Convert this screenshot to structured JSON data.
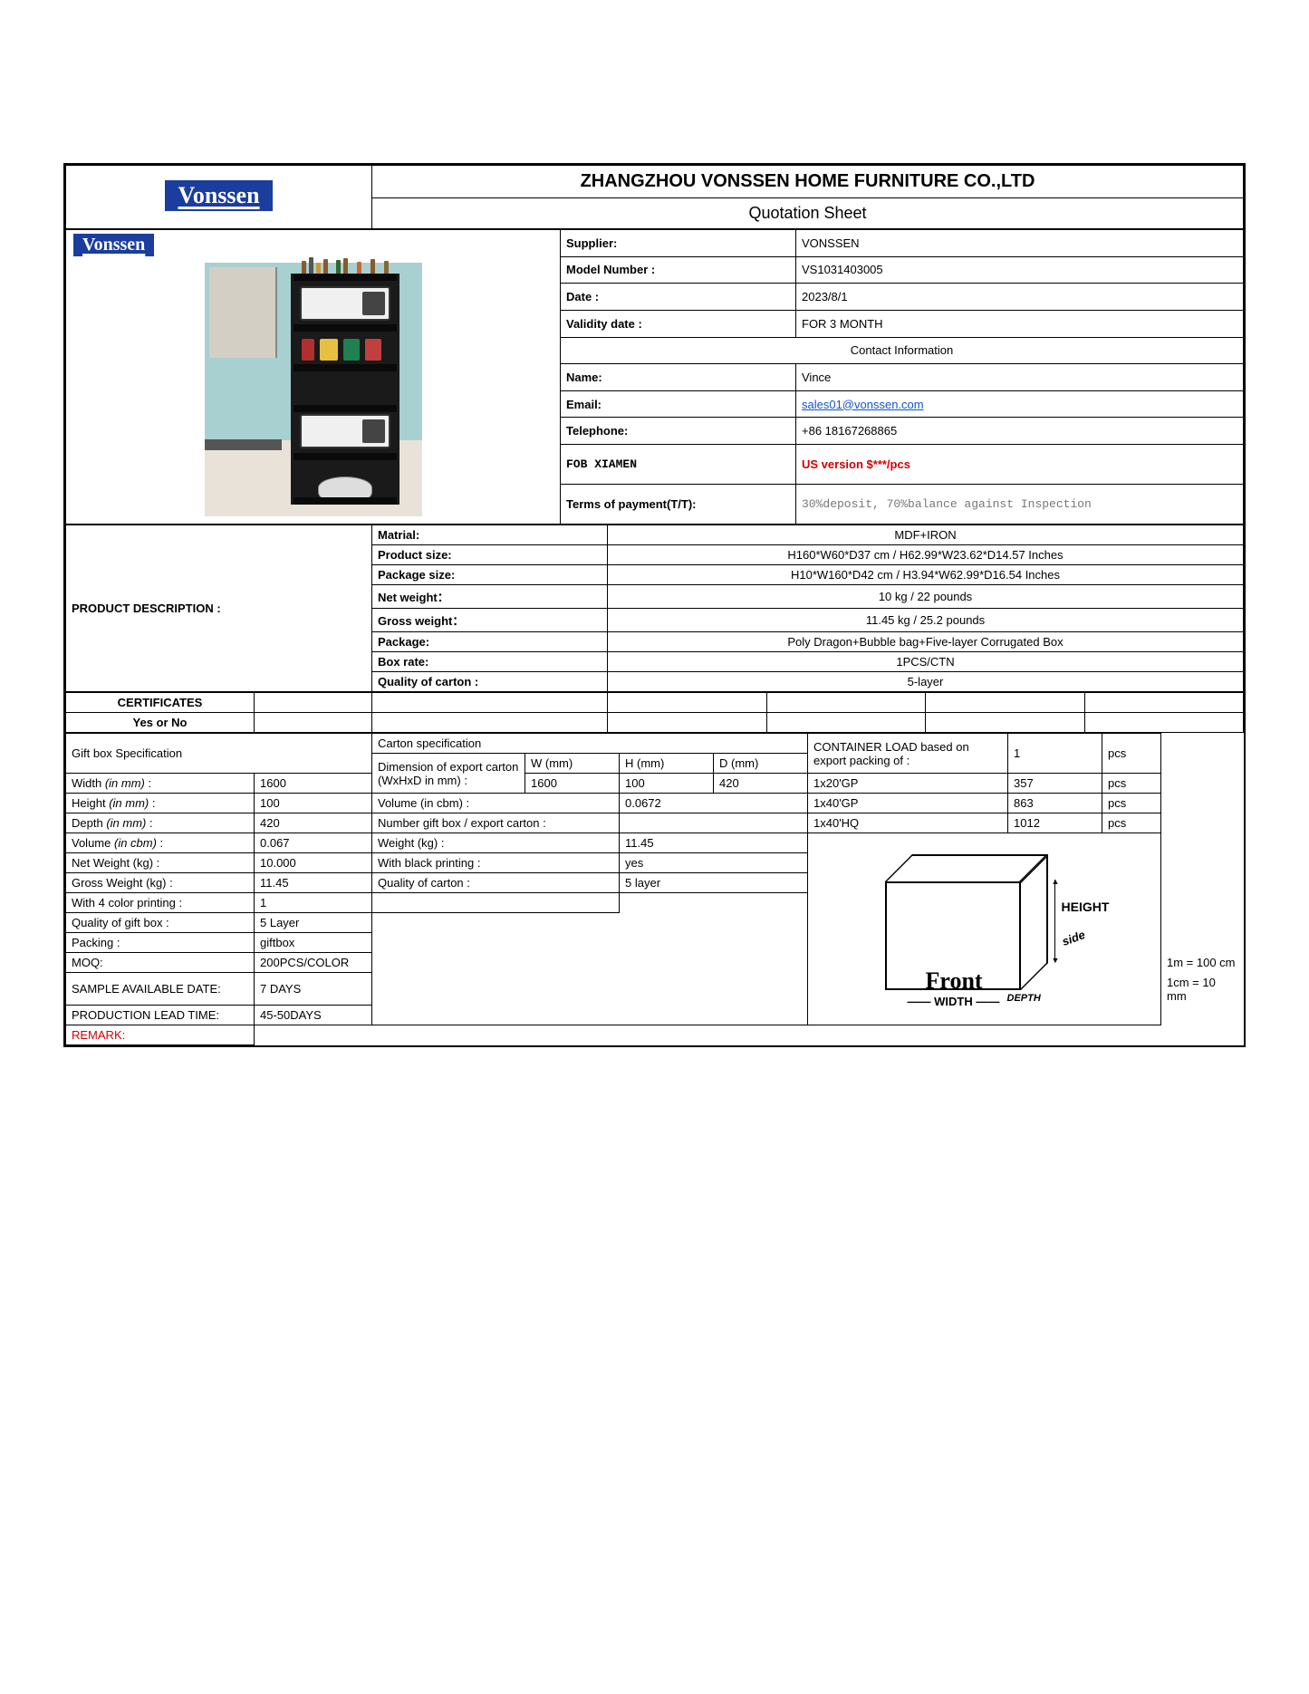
{
  "logo": "Vonssen",
  "company_title": "ZHANGZHOU VONSSEN HOME FURNITURE CO.,LTD",
  "subtitle": "Quotation Sheet",
  "info": {
    "supplier_label": "Supplier:",
    "supplier": "VONSSEN",
    "model_label": "Model Number :",
    "model": "VS1031403005",
    "date_label": "Date :",
    "date": "2023/8/1",
    "validity_label": "Validity date :",
    "validity": "FOR 3 MONTH",
    "contact_header": "Contact Information",
    "name_label": "Name:",
    "name": "Vince",
    "email_label": "Email:",
    "email": "sales01@vonssen.com",
    "tel_label": "Telephone:",
    "tel": "+86 18167268865",
    "fob_label": "FOB XIAMEN",
    "fob_value": "US version  $***/pcs",
    "terms_label": "Terms of payment(T/T):",
    "terms_value": "30%deposit, 70%balance against Inspection"
  },
  "product_desc_label": "PRODUCT DESCRIPTION :",
  "specs": {
    "material_label": "Matrial:",
    "material": "MDF+IRON",
    "psize_label": "Product size:",
    "psize": "H160*W60*D37 cm  /  H62.99*W23.62*D14.57 Inches",
    "pkgsize_label": "Package size:",
    "pkgsize": "H10*W160*D42 cm  /  H3.94*W62.99*D16.54 Inches",
    "netw_label": "Net weight：",
    "netw": "10 kg  / 22 pounds",
    "grossw_label": "Gross weight：",
    "grossw": "11.45 kg  / 25.2 pounds",
    "pkg_label": "Package:",
    "pkg": "Poly Dragon+Bubble bag+Five-layer Corrugated Box",
    "boxrate_label": "Box rate:",
    "boxrate": "1PCS/CTN",
    "qcarton_label": "Quality of carton :",
    "qcarton": "5-layer"
  },
  "certificates_label": "CERTIFICATES",
  "yesno_label": "Yes or No",
  "giftbox_label": "Gift box Specification",
  "carton_spec_label": "Carton specification",
  "container_label": "CONTAINER LOAD based on export packing of :",
  "container_qty": "1",
  "container_unit": "pcs",
  "dim_export_label": "Dimension of export carton\n(WxHxD in mm) :",
  "w_label": "W (mm)",
  "h_label": "H (mm)",
  "d_label": "D (mm)",
  "rows": {
    "width": {
      "label": "Width (in mm) :",
      "val": "1600",
      "w": "1600",
      "h": "100",
      "d": "420",
      "cnt": "1x20'GP",
      "qty": "357",
      "unit": "pcs"
    },
    "height": {
      "label": "Height (in mm) :",
      "val": "100",
      "key": "Volume (in cbm) :",
      "kval": "0.0672",
      "cnt": "1x40'GP",
      "qty": "863",
      "unit": "pcs"
    },
    "depth": {
      "label": "Depth (in mm) :",
      "val": "420",
      "key": "Number gift box / export carton :",
      "kval": "",
      "cnt": "1x40'HQ",
      "qty": "1012",
      "unit": "pcs"
    },
    "vol": {
      "label": "Volume (in cbm) :",
      "val": "0.067",
      "key": "Weight (kg)  :",
      "kval": "11.45"
    },
    "netw": {
      "label": "Net Weight (kg) :",
      "val": "10.000",
      "key": "With black printing :",
      "kval": "yes"
    },
    "grossw": {
      "label": "Gross Weight (kg) :",
      "val": "11.45",
      "key": "Quality of carton :",
      "kval": "5 layer"
    },
    "print4": {
      "label": "With 4 color printing :",
      "val": "1"
    },
    "qgift": {
      "label": "Quality of gift box :",
      "val": " 5 Layer"
    },
    "packing": {
      "label": "Packing :",
      "val": "giftbox"
    },
    "moq": {
      "label": "MOQ:",
      "val": "200PCS/COLOR",
      "extra": "1m = 100 cm"
    },
    "sample": {
      "label": "SAMPLE AVAILABLE DATE:",
      "val": "7 DAYS",
      "extra": "1cm = 10 mm"
    },
    "lead": {
      "label": "PRODUCTION LEAD TIME:",
      "val": "45-50DAYS"
    },
    "remark": {
      "label": "REMARK:"
    }
  },
  "diagram": {
    "front": "Front",
    "side": "side",
    "height": "HEIGHT",
    "width": "WIDTH",
    "depth": "DEPTH"
  }
}
